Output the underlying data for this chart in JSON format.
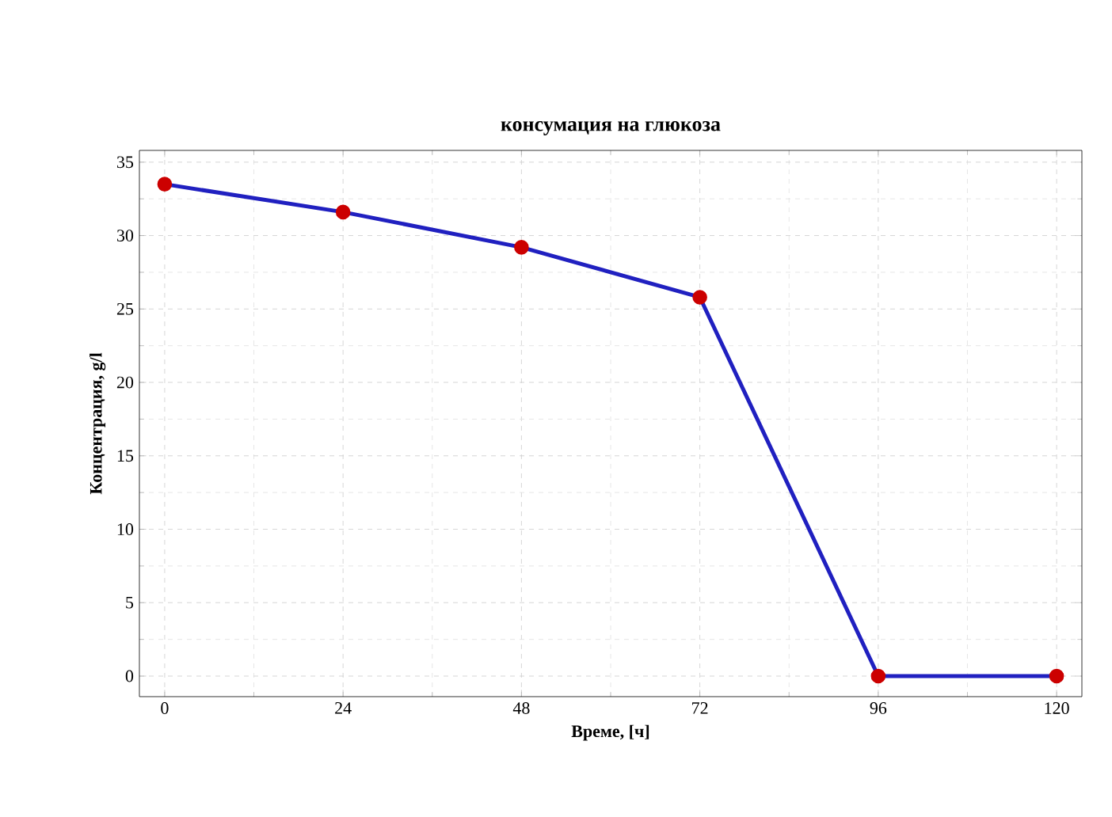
{
  "chart_data": {
    "type": "line",
    "title": "консумация на глюкоза",
    "xlabel": "Време, [ч]",
    "ylabel": "Концентрация, g/l",
    "x": [
      0,
      24,
      48,
      72,
      96,
      120
    ],
    "series": [
      {
        "color": "#2020c0",
        "values": [
          33.5,
          31.6,
          29.2,
          25.8,
          0,
          0
        ]
      }
    ],
    "xlim": [
      -3.4,
      123.4
    ],
    "ylim": [
      -1.4,
      35.8
    ],
    "xticks": [
      0,
      24,
      48,
      72,
      96,
      120
    ],
    "yticks": [
      0,
      5,
      10,
      15,
      20,
      25,
      30,
      35
    ],
    "grid": true,
    "marker": "circle",
    "line_style": "solid"
  }
}
